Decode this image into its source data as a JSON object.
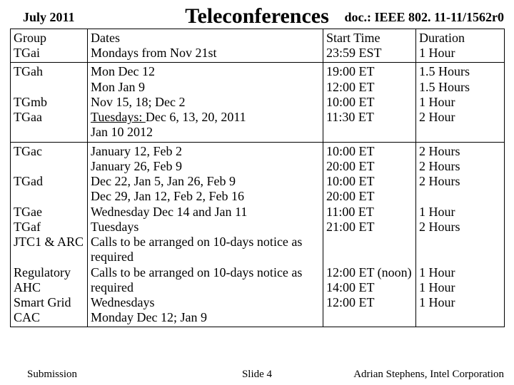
{
  "header": {
    "date": "July 2011",
    "title": "Teleconferences",
    "doc": "doc.: IEEE 802. 11-11/1562r0"
  },
  "columns": {
    "group": "Group",
    "dates": "Dates",
    "start": "Start Time",
    "duration": "Duration"
  },
  "rows": {
    "r1": {
      "group": "TGai",
      "dates": "Mondays from Nov 21st",
      "start": "23:59 EST",
      "dur": "1 Hour"
    },
    "r2": {
      "group_l1": "TGah",
      "group_l2": "",
      "group_l3": "TGmb",
      "group_l4": "TGaa",
      "dates_l1": "Mon Dec 12",
      "dates_l2": "Mon Jan 9",
      "dates_l3": "Nov 15, 18;  Dec 2",
      "dates_l4_a": "Tuesdays: ",
      "dates_l4_b": "Dec 6, 13, 20,  2011",
      "dates_l5": "Jan 10 2012",
      "start_l1": "19:00 ET",
      "start_l2": "12:00 ET",
      "start_l3": "10:00 ET",
      "start_l4": "11:30 ET",
      "dur_l1": "1.5 Hours",
      "dur_l2": "1.5 Hours",
      "dur_l3": "1 Hour",
      "dur_l4": "2 Hour"
    },
    "r3": {
      "group_l1": "TGac",
      "group_l2": "",
      "group_l3": "TGad",
      "group_l4": "",
      "group_l5": "TGae",
      "group_l6": "TGaf",
      "group_l7": "JTC1 & ARC",
      "group_l8": "",
      "group_l9": "Regulatory AHC",
      "group_l10": "Smart Grid",
      "group_l11": "CAC",
      "dates_l1": "January 12, Feb 2",
      "dates_l2": "January 26, Feb 9",
      "dates_l3": "Dec 22, Jan 5, Jan 26, Feb 9",
      "dates_l4": "Dec 29, Jan 12, Feb 2, Feb 16",
      "dates_l5": "Wednesday Dec 14 and Jan 11",
      "dates_l6": "Tuesdays",
      "dates_l7": "Calls to be arranged on 10-days notice as required",
      "dates_l8": "Calls to be arranged on 10-days notice as required",
      "dates_l9": "Wednesdays",
      "dates_l10": "Monday Dec 12; Jan 9",
      "start_l1": "10:00 ET",
      "start_l2": "20:00 ET",
      "start_l3": "10:00 ET",
      "start_l4": "20:00 ET",
      "start_l5": "11:00 ET",
      "start_l6": "21:00 ET",
      "start_l7": "",
      "start_l8": "",
      "start_l9": "12:00 ET (noon)",
      "start_l10": "14:00 ET",
      "start_l11": "12:00 ET",
      "dur_l1": "2 Hours",
      "dur_l2": "2 Hours",
      "dur_l3": "2 Hours",
      "dur_l4": "",
      "dur_l5": "1 Hour",
      "dur_l6": "2 Hours",
      "dur_l7": "",
      "dur_l8": "",
      "dur_l9": "1 Hour",
      "dur_l10": "1 Hour",
      "dur_l11": "1 Hour"
    }
  },
  "footer": {
    "submission": "Submission",
    "slide": "Slide 4",
    "author": "Adrian Stephens, Intel Corporation"
  }
}
